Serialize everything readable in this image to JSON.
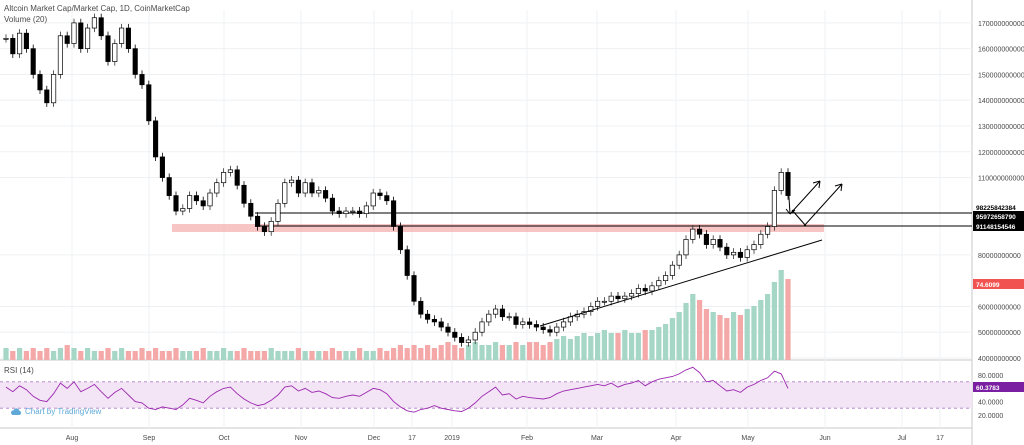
{
  "legend": {
    "title": "Altcoin Market Cap/Market Cap, 1D, CoinMarketCap",
    "volume_label": "Volume (20)"
  },
  "rsi": {
    "label": "RSI (14)",
    "ticks": [
      "80.0000",
      "40.0000",
      "20.0000"
    ],
    "current_badge": "60.3783"
  },
  "watermark": {
    "text": "Chart by TradingView"
  },
  "colors": {
    "up": "#26a69a",
    "down": "#000000",
    "support_zone": "#f4a6a6",
    "rsi_line": "#9c27b0",
    "rsi_band": "#f3e5f5",
    "volume_up": "#a5d6c6",
    "volume_down": "#f4a8a8",
    "badge_red": "#f05350",
    "badge_black": "#000000",
    "badge_purple": "#7b1fa2"
  },
  "chart_data": {
    "type": "candlestick",
    "title": "Altcoin Market Cap/Market Cap, 1D, CoinMarketCap",
    "x_tick_labels": [
      "Aug",
      "Sep",
      "Oct",
      "Nov",
      "Dec",
      "17",
      "2019",
      "Feb",
      "Mar",
      "Apr",
      "May",
      "Jun",
      "Jul",
      "17"
    ],
    "y_tick_labels": [
      "170000000000",
      "160000000000",
      "150000000000",
      "140000000000",
      "130000000000",
      "120000000000",
      "110000000000",
      "80000000000",
      "60000000000",
      "50000000000",
      "40000000000"
    ],
    "price_badges": {
      "level_1": "98225842384",
      "level_2": "95972658790",
      "level_3": "91148154546",
      "volume": "74.6099"
    },
    "ylim": [
      40000000000,
      175000000000
    ],
    "grid": true,
    "price_series": [
      164,
      158,
      166,
      160,
      150,
      144,
      139,
      150,
      165,
      162,
      170,
      160,
      168,
      172,
      165,
      155,
      162,
      168,
      160,
      150,
      146,
      132,
      118,
      110,
      103,
      97,
      98,
      103,
      101,
      99,
      104,
      108,
      112,
      113,
      107,
      100,
      95,
      91,
      89,
      93,
      100,
      108,
      109,
      104,
      108,
      104,
      105,
      102,
      97,
      96,
      97,
      97,
      96,
      99,
      104,
      103,
      101,
      91,
      82,
      72,
      62,
      57,
      55,
      54,
      52,
      50,
      48,
      46,
      47,
      50,
      54,
      57,
      59,
      56,
      56,
      53,
      54,
      53,
      52,
      51,
      50,
      52,
      54,
      56,
      57,
      58,
      60,
      62,
      62,
      64,
      63,
      64,
      65,
      67,
      66,
      68,
      70,
      72,
      76,
      80,
      86,
      90,
      88,
      84,
      86,
      83,
      80,
      81,
      79,
      82,
      84,
      88,
      91,
      105,
      112,
      103
    ],
    "volume_series": [
      4,
      3,
      4,
      3,
      4,
      3,
      4,
      3,
      4,
      5,
      4,
      3,
      4,
      3,
      3,
      4,
      3,
      4,
      3,
      3,
      4,
      3,
      4,
      3,
      3,
      4,
      3,
      3,
      3,
      4,
      3,
      3,
      4,
      3,
      3,
      4,
      3,
      3,
      3,
      4,
      3,
      3,
      3,
      4,
      3,
      3,
      3,
      3,
      4,
      3,
      3,
      3,
      4,
      3,
      3,
      4,
      3,
      4,
      5,
      4,
      5,
      4,
      5,
      4,
      5,
      6,
      5,
      4,
      5,
      6,
      5,
      5,
      6,
      5,
      5,
      6,
      5,
      6,
      6,
      5,
      6,
      7,
      8,
      7,
      8,
      9,
      8,
      9,
      10,
      9,
      9,
      10,
      9,
      9,
      10,
      10,
      11,
      12,
      14,
      16,
      19,
      22,
      20,
      17,
      16,
      15,
      14,
      16,
      15,
      17,
      18,
      20,
      22,
      26,
      30,
      27
    ],
    "rsi_series": [
      62,
      55,
      64,
      58,
      48,
      42,
      40,
      52,
      68,
      60,
      70,
      55,
      60,
      66,
      55,
      45,
      54,
      60,
      50,
      40,
      38,
      30,
      28,
      32,
      30,
      28,
      35,
      45,
      42,
      38,
      48,
      55,
      60,
      62,
      52,
      44,
      38,
      34,
      36,
      42,
      50,
      62,
      64,
      56,
      60,
      54,
      56,
      52,
      46,
      45,
      48,
      50,
      48,
      54,
      60,
      58,
      52,
      40,
      32,
      26,
      24,
      28,
      30,
      34,
      30,
      28,
      26,
      25,
      30,
      38,
      48,
      55,
      62,
      50,
      52,
      44,
      48,
      46,
      45,
      44,
      46,
      52,
      56,
      58,
      60,
      62,
      64,
      66,
      64,
      68,
      62,
      66,
      68,
      72,
      64,
      70,
      74,
      76,
      78,
      82,
      88,
      92,
      84,
      70,
      72,
      64,
      56,
      58,
      54,
      62,
      66,
      72,
      76,
      86,
      82,
      60
    ]
  }
}
